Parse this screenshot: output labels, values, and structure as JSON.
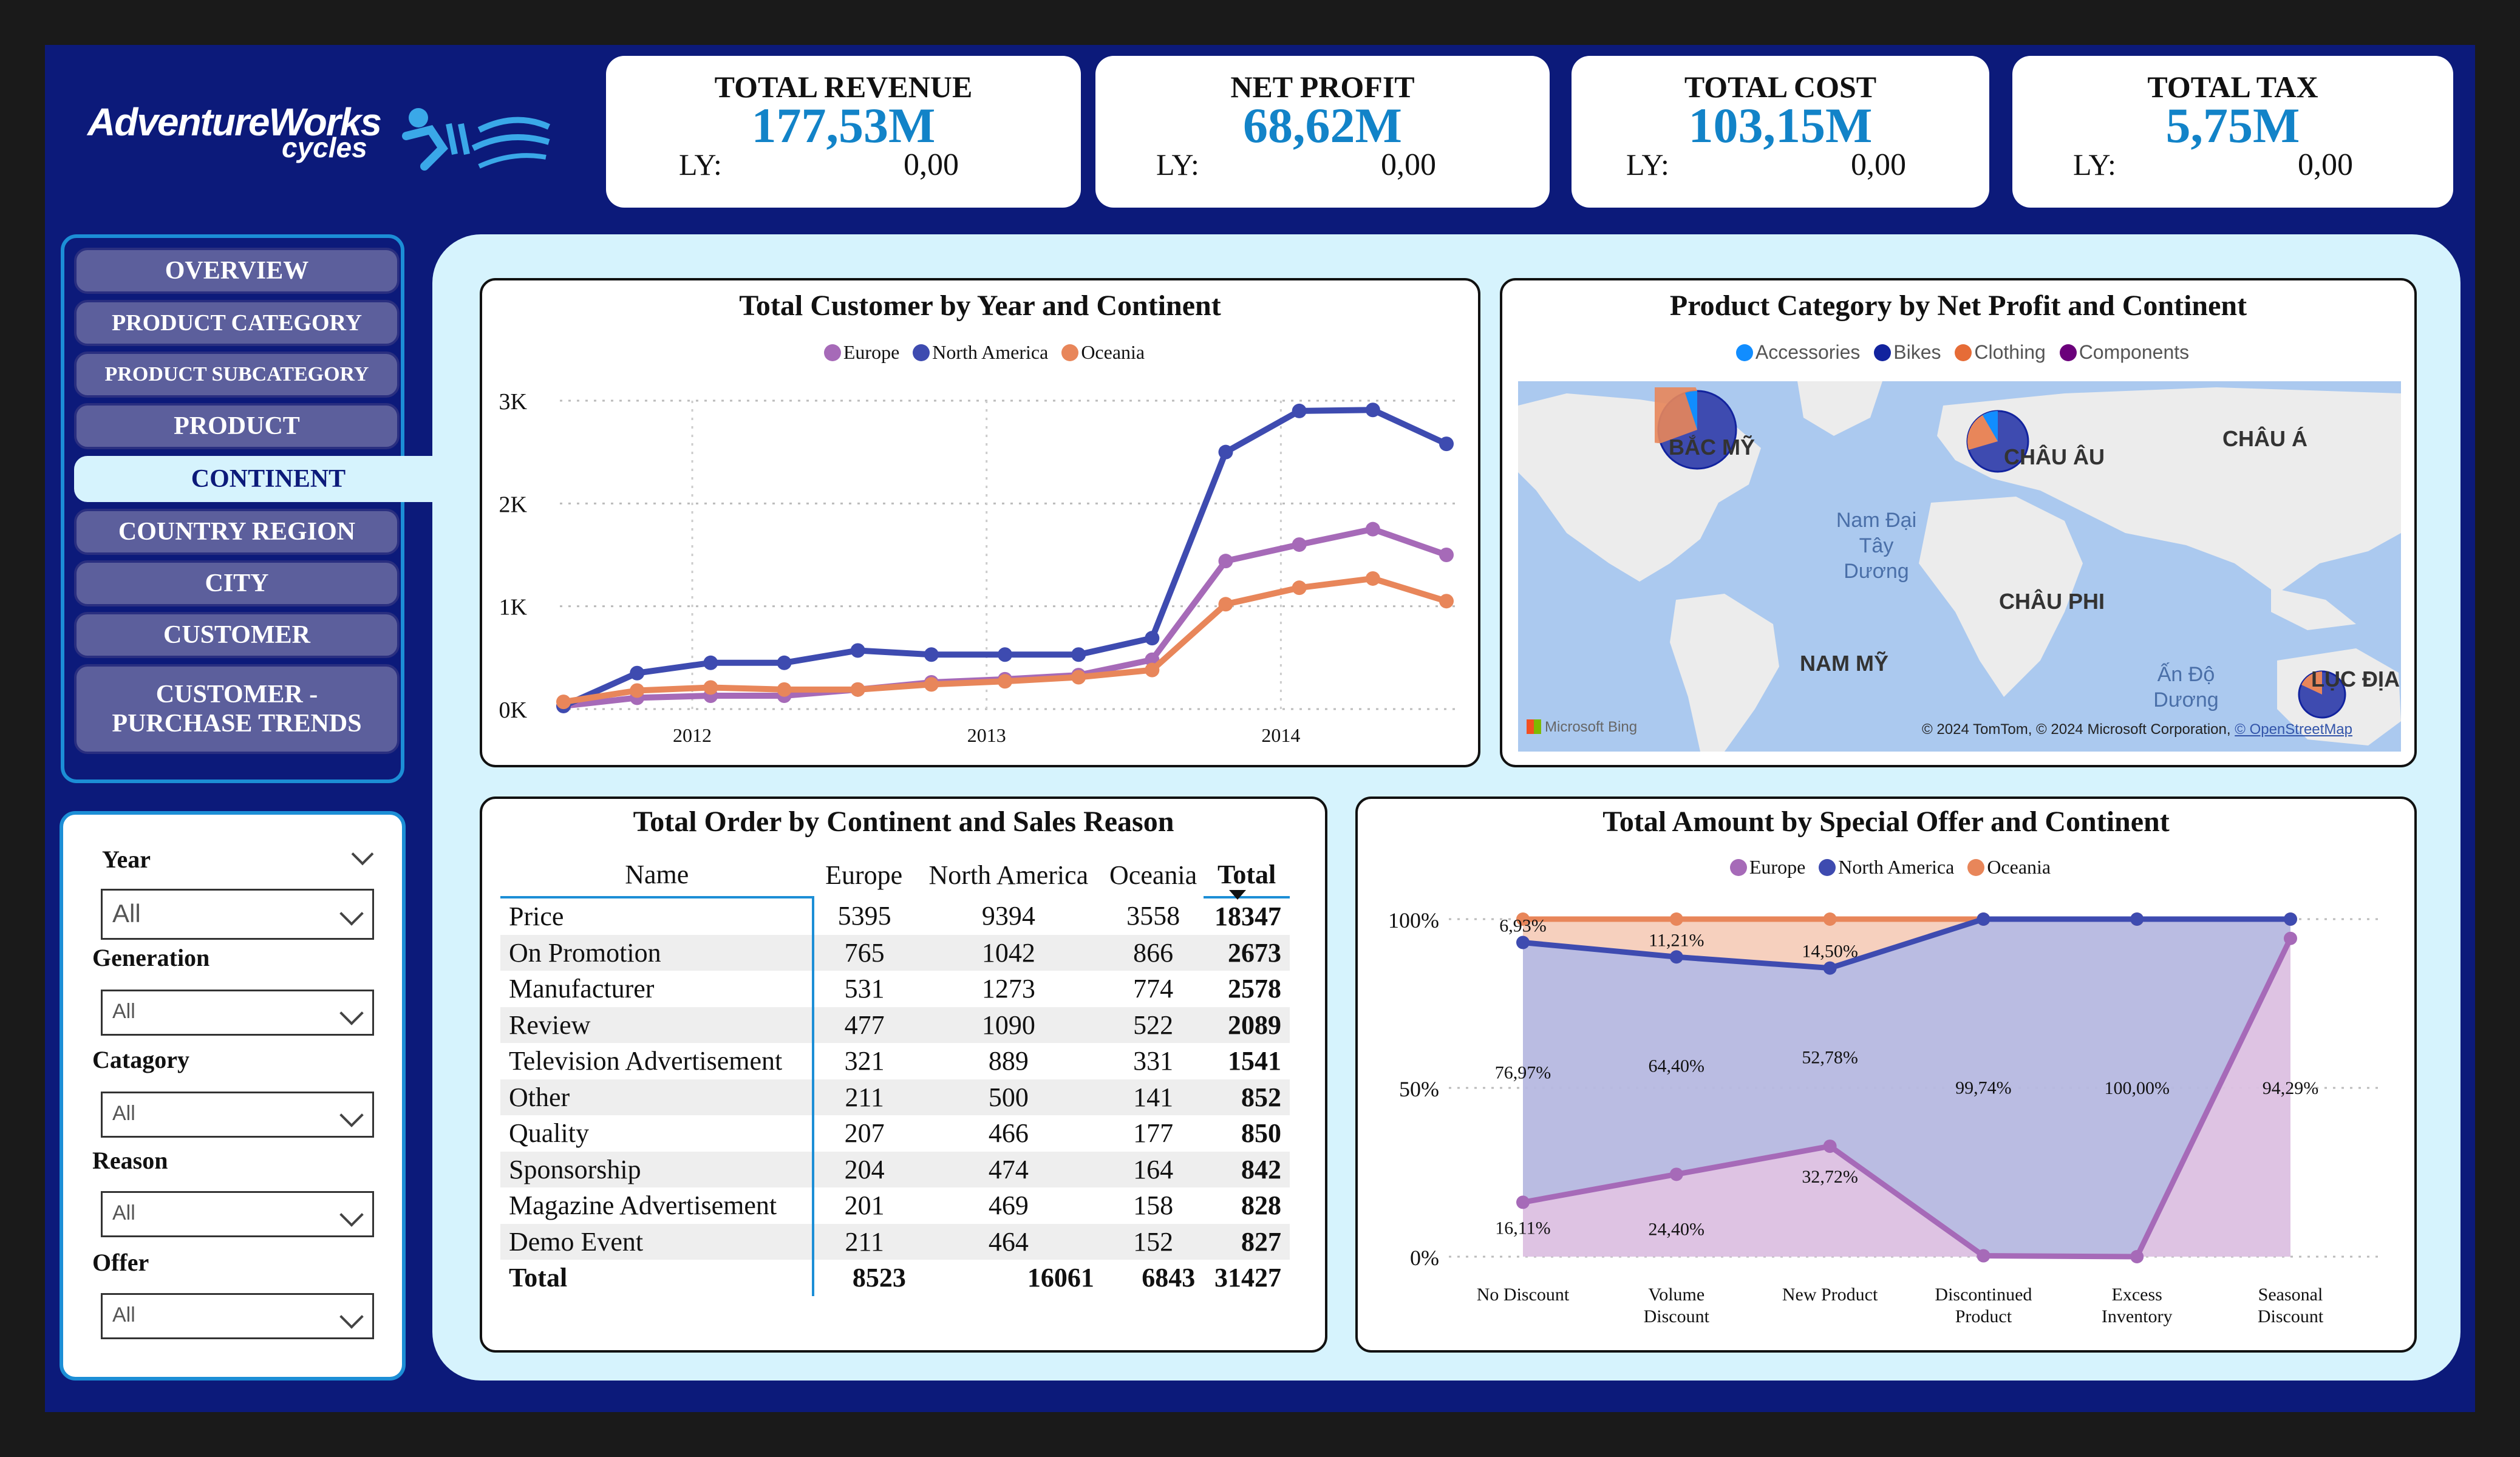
{
  "logo": {
    "brand": "AdventureWorks",
    "sub": "cycles"
  },
  "kpis": [
    {
      "title": "TOTAL REVENUE",
      "value": "177,53M",
      "ly_label": "LY:",
      "ly_value": "0,00"
    },
    {
      "title": "NET PROFIT",
      "value": "68,62M",
      "ly_label": "LY:",
      "ly_value": "0,00"
    },
    {
      "title": "TOTAL COST",
      "value": "103,15M",
      "ly_label": "LY:",
      "ly_value": "0,00"
    },
    {
      "title": "TOTAL TAX",
      "value": "5,75M",
      "ly_label": "LY:",
      "ly_value": "0,00"
    }
  ],
  "nav": {
    "overview": "OVERVIEW",
    "product_category": "PRODUCT CATEGORY",
    "product_subcategory": "PRODUCT SUBCATEGORY",
    "product": "PRODUCT",
    "continent": "CONTINENT",
    "country_region": "COUNTRY REGION",
    "city": "CITY",
    "customer": "CUSTOMER",
    "customer_trends_1": "CUSTOMER -",
    "customer_trends_2": "PURCHASE TRENDS"
  },
  "filters": {
    "year": {
      "label": "Year",
      "value": "All"
    },
    "generation": {
      "label": "Generation",
      "value": "All"
    },
    "category": {
      "label": "Catagory",
      "value": "All"
    },
    "reason": {
      "label": "Reason",
      "value": "All"
    },
    "offer": {
      "label": "Offer",
      "value": "All"
    }
  },
  "map": {
    "title": "Product Category by Net Profit and Continent",
    "legend": [
      "Accessories",
      "Bikes",
      "Clothing",
      "Components"
    ],
    "legend_colors": [
      "#118dff",
      "#12239e",
      "#e66c37",
      "#6b007b"
    ],
    "labels": {
      "bac_my": "BẮC MỸ",
      "chau_au": "CHÂU ÂU",
      "chau_a": "CHÂU Á",
      "ocean_1": "Nam Đại",
      "ocean_2": "Tây",
      "ocean_3": "Dương",
      "chau_phi": "CHÂU PHI",
      "nam_my": "NAM MỸ",
      "an_do_1": "Ấn Độ",
      "an_do_2": "Dương",
      "luc_dia": "LỤC ĐỊA"
    },
    "bing": "Microsoft Bing",
    "copyright": "© 2024 TomTom, © 2024 Microsoft Corporation,",
    "osm": "© OpenStreetMap"
  },
  "orders_table": {
    "title": "Total Order by Continent and Sales Reason",
    "headers": [
      "Name",
      "Europe",
      "North America",
      "Oceania",
      "Total"
    ],
    "rows": [
      [
        "Price",
        "5395",
        "9394",
        "3558",
        "18347"
      ],
      [
        "On Promotion",
        "765",
        "1042",
        "866",
        "2673"
      ],
      [
        "Manufacturer",
        "531",
        "1273",
        "774",
        "2578"
      ],
      [
        "Review",
        "477",
        "1090",
        "522",
        "2089"
      ],
      [
        "Television Advertisement",
        "321",
        "889",
        "331",
        "1541"
      ],
      [
        "Other",
        "211",
        "500",
        "141",
        "852"
      ],
      [
        "Quality",
        "207",
        "466",
        "177",
        "850"
      ],
      [
        "Sponsorship",
        "204",
        "474",
        "164",
        "842"
      ],
      [
        "Magazine Advertisement",
        "201",
        "469",
        "158",
        "828"
      ],
      [
        "Demo Event",
        "211",
        "464",
        "152",
        "827"
      ]
    ],
    "total_row": [
      "Total",
      "8523",
      "16061",
      "6843",
      "31427"
    ]
  },
  "chart_data": [
    {
      "type": "line",
      "title": "Total Customer by Year and Continent",
      "legend_placement": "top-center",
      "grid": true,
      "x": [
        "2011-07",
        "2011-10",
        "2012-01",
        "2012-04",
        "2012-07",
        "2012-10",
        "2013-01",
        "2013-04",
        "2013-07",
        "2013-10",
        "2014-01",
        "2014-04",
        "2014-07"
      ],
      "xticks": [
        "2012",
        "2013",
        "2014"
      ],
      "yticks": [
        "0K",
        "1K",
        "2K",
        "3K"
      ],
      "ylim": [
        0,
        3000
      ],
      "series": [
        {
          "name": "Europe",
          "color": "#a66ab8",
          "values": [
            30,
            110,
            130,
            130,
            190,
            260,
            290,
            330,
            480,
            1440,
            1600,
            1750,
            1500
          ]
        },
        {
          "name": "North America",
          "color": "#3e4bb0",
          "values": [
            30,
            350,
            450,
            450,
            570,
            530,
            530,
            530,
            690,
            2500,
            2900,
            2910,
            2580
          ]
        },
        {
          "name": "Oceania",
          "color": "#e8865a",
          "values": [
            70,
            180,
            210,
            190,
            190,
            240,
            270,
            310,
            380,
            1020,
            1180,
            1270,
            1050
          ]
        }
      ]
    },
    {
      "type": "area",
      "stacked_percent": true,
      "title": "Total Amount by Special Offer and Continent",
      "legend_placement": "top-center",
      "categories": [
        "No Discount",
        "Volume Discount",
        "New Product",
        "Discontinued Product",
        "Excess Inventory",
        "Seasonal Discount"
      ],
      "yticks": [
        "0%",
        "50%",
        "100%"
      ],
      "ylim": [
        0,
        100
      ],
      "series": [
        {
          "name": "Europe",
          "color": "#a66ab8",
          "values": [
            16.11,
            24.4,
            32.72,
            0.26,
            0,
            94.29
          ]
        },
        {
          "name": "North America",
          "color": "#3e4bb0",
          "values": [
            76.97,
            64.4,
            52.78,
            99.74,
            100.0,
            5.71
          ]
        },
        {
          "name": "Oceania",
          "color": "#e8865a",
          "values": [
            6.93,
            11.21,
            14.5,
            0,
            0,
            0
          ]
        }
      ],
      "data_labels": {
        "Europe": [
          "16,11%",
          "24,40%",
          "32,72%",
          "",
          "",
          "94,29%"
        ],
        "North America": [
          "76,97%",
          "64,40%",
          "52,78%",
          "99,74%",
          "100,00%",
          ""
        ],
        "Oceania": [
          "6,93%",
          "11,21%",
          "14,50%",
          "",
          "",
          ""
        ]
      }
    }
  ]
}
